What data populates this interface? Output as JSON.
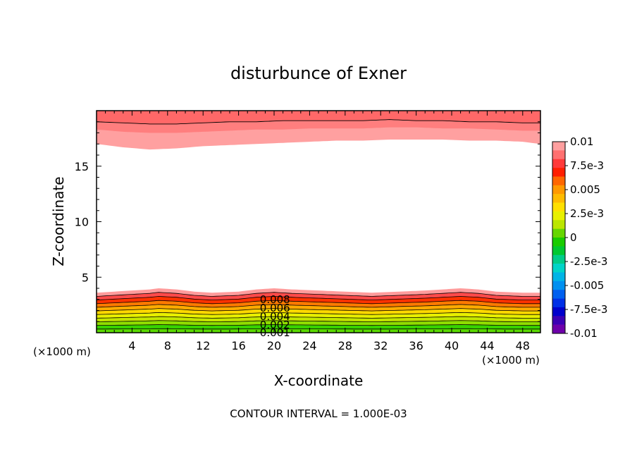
{
  "chart_data": {
    "type": "contour",
    "title": "disturbunce of Exner",
    "xlabel": "X-coordinate",
    "ylabel": "Z-coordinate",
    "x_unit_left": "(×1000 m)",
    "x_unit_right": "(×1000 m)",
    "xlim": [
      0,
      50
    ],
    "ylim": [
      0,
      20
    ],
    "x_ticks": [
      4,
      8,
      12,
      16,
      20,
      24,
      28,
      32,
      36,
      40,
      44,
      48
    ],
    "x_tick_labels": [
      "4",
      "8",
      "12",
      "16",
      "20",
      "24",
      "28",
      "32",
      "36",
      "40",
      "44",
      "48"
    ],
    "y_ticks": [
      5,
      10,
      15
    ],
    "y_tick_labels": [
      "5",
      "10",
      "15"
    ],
    "contour_interval_label": "CONTOUR INTERVAL = 1.000E-03",
    "contour_interval": 0.001,
    "lower_layer": {
      "top_level": 0.01,
      "top_height": [
        3.6,
        3.7,
        3.8,
        3.9,
        4.0,
        3.9,
        3.7,
        3.6,
        3.7,
        3.9,
        4.0,
        3.9,
        3.8,
        3.7,
        3.6,
        3.7,
        3.8,
        3.9,
        4.0,
        3.9,
        3.7,
        3.6,
        3.6
      ],
      "x_samples": [
        0,
        2,
        4,
        6,
        7,
        9,
        11,
        13,
        16,
        18,
        20,
        22,
        25,
        28,
        31,
        34,
        37,
        39,
        41,
        43,
        45,
        48,
        50
      ]
    },
    "contour_labels": [
      "0.008",
      "0.006",
      "0.004",
      "0.002",
      "0.001"
    ],
    "contour_label_values": [
      0.008,
      0.006,
      0.004,
      0.002,
      0.001
    ],
    "upper_layer": {
      "boundary_pink": [
        17.0,
        16.7,
        16.5,
        16.6,
        16.8,
        16.9,
        17.0,
        17.1,
        17.2,
        17.3,
        17.3,
        17.4,
        17.4,
        17.4,
        17.3,
        17.3,
        17.2,
        17.0
      ],
      "boundary_salmon": [
        18.3,
        18.1,
        18.0,
        18.0,
        18.1,
        18.2,
        18.3,
        18.3,
        18.4,
        18.4,
        18.4,
        18.5,
        18.5,
        18.4,
        18.4,
        18.3,
        18.2,
        18.2
      ],
      "boundary_line_top": [
        19.0,
        18.9,
        18.8,
        18.8,
        18.9,
        19.0,
        19.0,
        19.1,
        19.1,
        19.1,
        19.1,
        19.2,
        19.1,
        19.1,
        19.0,
        19.0,
        18.9,
        18.9
      ],
      "x_samples": [
        0,
        3,
        6,
        9,
        12,
        15,
        18,
        21,
        24,
        27,
        30,
        33,
        36,
        39,
        42,
        45,
        48,
        50
      ]
    },
    "colorbar": {
      "labels": [
        "0.01",
        "7.5e-3",
        "0.005",
        "2.5e-3",
        "0",
        "-2.5e-3",
        "-0.005",
        "-7.5e-3",
        "-0.01"
      ],
      "values": [
        0.01,
        0.0075,
        0.005,
        0.0025,
        0,
        -0.0025,
        -0.005,
        -0.0075,
        -0.01
      ],
      "colors_top_to_bottom": [
        "#ff9f9f",
        "#ff7070",
        "#ff3a3a",
        "#ff1e00",
        "#ff6600",
        "#ff9900",
        "#ffbb00",
        "#ffe000",
        "#e8f000",
        "#bbe600",
        "#66d600",
        "#19cc00",
        "#00c830",
        "#00cc88",
        "#00d4c8",
        "#00b4e6",
        "#0090f0",
        "#0060f0",
        "#0030e6",
        "#0000cc",
        "#3c00b4",
        "#6e00aa"
      ]
    }
  }
}
